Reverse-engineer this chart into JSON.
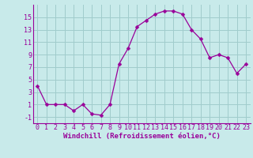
{
  "x": [
    0,
    1,
    2,
    3,
    4,
    5,
    6,
    7,
    8,
    9,
    10,
    11,
    12,
    13,
    14,
    15,
    16,
    17,
    18,
    19,
    20,
    21,
    22,
    23
  ],
  "y": [
    4,
    1,
    1,
    1,
    0,
    1,
    -0.5,
    -0.7,
    1,
    7.5,
    10,
    13.5,
    14.5,
    15.5,
    16,
    16,
    15.5,
    13,
    11.5,
    8.5,
    9,
    8.5,
    6,
    7.5
  ],
  "line_color": "#990099",
  "marker": "D",
  "marker_size": 2.5,
  "bg_color": "#c8eaea",
  "grid_color": "#a0cccc",
  "xlabel": "Windchill (Refroidissement éolien,°C)",
  "xlabel_fontsize": 6.5,
  "tick_fontsize": 6.0,
  "ylim": [
    -2,
    17
  ],
  "xlim": [
    -0.5,
    23.5
  ],
  "yticks": [
    -1,
    1,
    3,
    5,
    7,
    9,
    11,
    13,
    15
  ],
  "xticks": [
    0,
    1,
    2,
    3,
    4,
    5,
    6,
    7,
    8,
    9,
    10,
    11,
    12,
    13,
    14,
    15,
    16,
    17,
    18,
    19,
    20,
    21,
    22,
    23
  ]
}
